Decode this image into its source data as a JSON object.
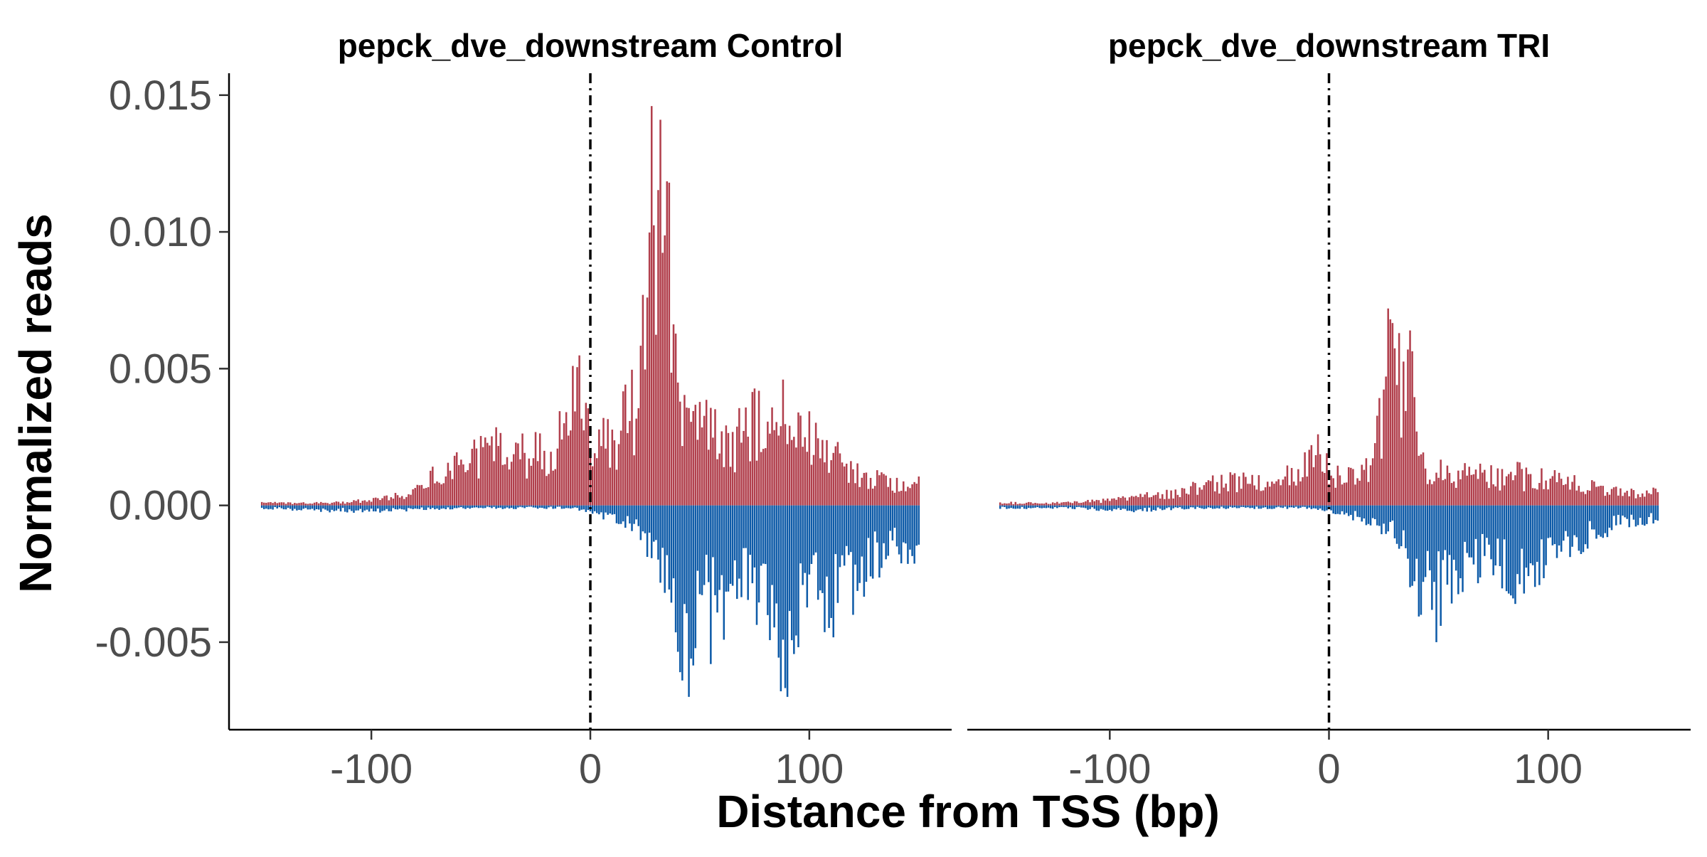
{
  "chart_data": {
    "type": "bar",
    "xlabel": "Distance from TSS (bp)",
    "ylabel": "Normalized reads",
    "xlim": [
      -165,
      165
    ],
    "ylim": [
      -0.0082,
      0.0158
    ],
    "x_ticks": [
      -100,
      0,
      100
    ],
    "x_tick_labels": [
      "-100",
      "0",
      "100"
    ],
    "y_ticks": [
      -0.005,
      0.0,
      0.005,
      0.01,
      0.015
    ],
    "y_tick_labels": [
      "-0.005",
      "0.000",
      "0.005",
      "0.010",
      "0.015"
    ],
    "x_range": [
      -150,
      150
    ],
    "reference_line": {
      "x": 0,
      "style": "dotdash",
      "color": "#000000"
    },
    "grid": false,
    "legend": "none",
    "colors": {
      "positive_strand": "#b13f4c",
      "negative_strand": "#0e5ba8"
    },
    "panels": [
      {
        "title": "pepck_dve_downstream Control",
        "positive_anchors": [
          [
            -150,
            0.0001
          ],
          [
            -120,
            0.0001
          ],
          [
            -100,
            0.0002
          ],
          [
            -85,
            0.0004
          ],
          [
            -75,
            0.0009
          ],
          [
            -68,
            0.0013
          ],
          [
            -60,
            0.0016
          ],
          [
            -50,
            0.002
          ],
          [
            -40,
            0.0024
          ],
          [
            -30,
            0.002
          ],
          [
            -20,
            0.0022
          ],
          [
            -10,
            0.003
          ],
          [
            -5,
            0.0042
          ],
          [
            0,
            0.0032
          ],
          [
            5,
            0.0025
          ],
          [
            10,
            0.0026
          ],
          [
            15,
            0.0032
          ],
          [
            20,
            0.004
          ],
          [
            23,
            0.0052
          ],
          [
            26,
            0.009
          ],
          [
            28,
            0.0135
          ],
          [
            30,
            0.01
          ],
          [
            32,
            0.0125
          ],
          [
            34,
            0.0085
          ],
          [
            36,
            0.0115
          ],
          [
            38,
            0.007
          ],
          [
            40,
            0.0042
          ],
          [
            45,
            0.0028
          ],
          [
            55,
            0.003
          ],
          [
            65,
            0.0024
          ],
          [
            75,
            0.0034
          ],
          [
            85,
            0.0028
          ],
          [
            95,
            0.003
          ],
          [
            105,
            0.0024
          ],
          [
            115,
            0.0016
          ],
          [
            125,
            0.001
          ],
          [
            140,
            0.0009
          ],
          [
            150,
            0.001
          ]
        ],
        "negative_anchors": [
          [
            -150,
            -0.0001
          ],
          [
            -120,
            -0.0002
          ],
          [
            -90,
            -0.0002
          ],
          [
            -60,
            -0.0001
          ],
          [
            -30,
            -0.0001
          ],
          [
            -10,
            -0.0001
          ],
          [
            0,
            -0.0002
          ],
          [
            10,
            -0.0005
          ],
          [
            20,
            -0.001
          ],
          [
            28,
            -0.0018
          ],
          [
            33,
            -0.0024
          ],
          [
            38,
            -0.0042
          ],
          [
            42,
            -0.0055
          ],
          [
            46,
            -0.0045
          ],
          [
            50,
            -0.004
          ],
          [
            55,
            -0.0032
          ],
          [
            60,
            -0.0038
          ],
          [
            65,
            -0.003
          ],
          [
            70,
            -0.0025
          ],
          [
            75,
            -0.0032
          ],
          [
            80,
            -0.0036
          ],
          [
            85,
            -0.0052
          ],
          [
            88,
            -0.006
          ],
          [
            92,
            -0.0044
          ],
          [
            98,
            -0.004
          ],
          [
            105,
            -0.0034
          ],
          [
            110,
            -0.0044
          ],
          [
            115,
            -0.003
          ],
          [
            120,
            -0.003
          ],
          [
            128,
            -0.0022
          ],
          [
            135,
            -0.0018
          ],
          [
            142,
            -0.0016
          ],
          [
            150,
            -0.0018
          ]
        ],
        "positive_peaks": [
          [
            28,
            0.0146
          ],
          [
            32,
            0.0141
          ],
          [
            36,
            0.0118
          ],
          [
            -8,
            0.0051
          ],
          [
            88,
            0.0046
          ]
        ],
        "negative_peaks": [
          [
            45,
            -0.007
          ],
          [
            90,
            -0.007
          ],
          [
            55,
            -0.0058
          ],
          [
            120,
            -0.004
          ]
        ]
      },
      {
        "title": "pepck_dve_downstream TRI",
        "positive_anchors": [
          [
            -150,
            0.0001
          ],
          [
            -120,
            0.0001
          ],
          [
            -100,
            0.0002
          ],
          [
            -80,
            0.0004
          ],
          [
            -65,
            0.0006
          ],
          [
            -50,
            0.0009
          ],
          [
            -35,
            0.001
          ],
          [
            -20,
            0.0012
          ],
          [
            -10,
            0.0016
          ],
          [
            -3,
            0.002
          ],
          [
            0,
            0.0014
          ],
          [
            5,
            0.001
          ],
          [
            12,
            0.0011
          ],
          [
            18,
            0.0015
          ],
          [
            22,
            0.0025
          ],
          [
            25,
            0.004
          ],
          [
            28,
            0.0055
          ],
          [
            31,
            0.0045
          ],
          [
            34,
            0.005
          ],
          [
            37,
            0.005
          ],
          [
            40,
            0.003
          ],
          [
            45,
            0.0016
          ],
          [
            55,
            0.0012
          ],
          [
            70,
            0.0012
          ],
          [
            85,
            0.0012
          ],
          [
            100,
            0.001
          ],
          [
            115,
            0.0008
          ],
          [
            130,
            0.0006
          ],
          [
            150,
            0.0005
          ]
        ],
        "negative_anchors": [
          [
            -150,
            -0.0001
          ],
          [
            -120,
            -0.0001
          ],
          [
            -90,
            -0.0002
          ],
          [
            -60,
            -0.0001
          ],
          [
            -30,
            -0.0001
          ],
          [
            -10,
            -0.0001
          ],
          [
            0,
            -0.0002
          ],
          [
            10,
            -0.0004
          ],
          [
            20,
            -0.0006
          ],
          [
            28,
            -0.001
          ],
          [
            33,
            -0.0015
          ],
          [
            38,
            -0.0025
          ],
          [
            42,
            -0.0032
          ],
          [
            48,
            -0.0038
          ],
          [
            52,
            -0.0035
          ],
          [
            58,
            -0.003
          ],
          [
            63,
            -0.0025
          ],
          [
            70,
            -0.0022
          ],
          [
            78,
            -0.0024
          ],
          [
            85,
            -0.003
          ],
          [
            90,
            -0.0026
          ],
          [
            98,
            -0.0022
          ],
          [
            105,
            -0.0018
          ],
          [
            112,
            -0.0015
          ],
          [
            120,
            -0.0011
          ],
          [
            130,
            -0.0008
          ],
          [
            140,
            -0.0006
          ],
          [
            150,
            -0.0006
          ]
        ],
        "positive_peaks": [
          [
            27,
            0.0072
          ],
          [
            32,
            0.0063
          ],
          [
            36,
            0.0057
          ],
          [
            -5,
            0.0026
          ]
        ],
        "negative_peaks": [
          [
            49,
            -0.005
          ],
          [
            42,
            -0.004
          ],
          [
            84,
            -0.0034
          ]
        ]
      }
    ]
  }
}
